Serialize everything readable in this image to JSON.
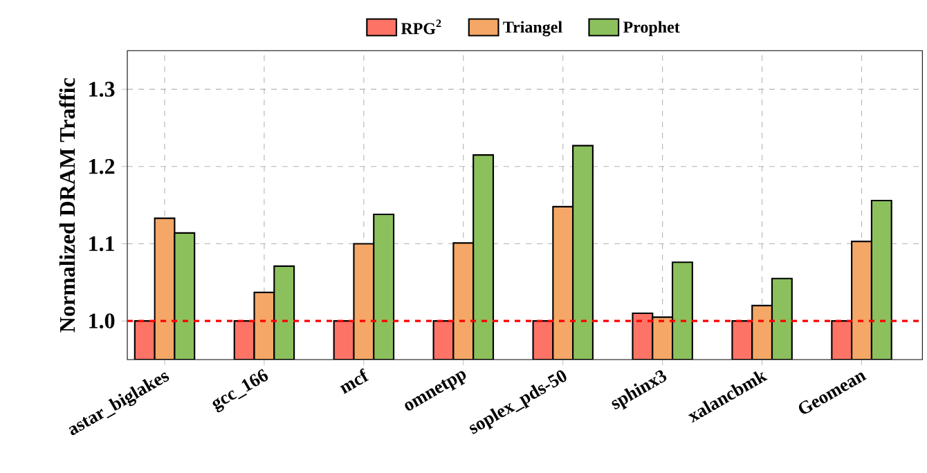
{
  "chart_data": {
    "type": "bar",
    "ylabel": "Normalized DRAM Traffic",
    "categories": [
      "astar_biglakes",
      "gcc_166",
      "mcf",
      "omnetpp",
      "soplex_pds-50",
      "sphinx3",
      "xalancbmk",
      "Geomean"
    ],
    "series": [
      {
        "name": "RPG$^{2}$",
        "color": "#fd7366",
        "values": [
          1.0,
          1.0,
          1.0,
          1.0,
          1.0,
          1.01,
          1.0,
          1.0
        ]
      },
      {
        "name": "Triangel",
        "color": "#f4a766",
        "values": [
          1.133,
          1.037,
          1.1,
          1.101,
          1.148,
          1.005,
          1.02,
          1.103
        ]
      },
      {
        "name": "Prophet",
        "color": "#8cc05d",
        "values": [
          1.114,
          1.071,
          1.138,
          1.215,
          1.227,
          1.076,
          1.055,
          1.156
        ]
      }
    ],
    "ylim": [
      0.95,
      1.35
    ],
    "yticks": [
      {
        "value": 1.0,
        "label": "1.0"
      },
      {
        "value": 1.1,
        "label": "1.1"
      },
      {
        "value": 1.2,
        "label": "1.2"
      },
      {
        "value": 1.3,
        "label": "1.3"
      }
    ],
    "ref_lines": [
      {
        "axis": "y",
        "value": 1.0,
        "color": "#ff0000",
        "line_style": "dashed"
      }
    ],
    "grid": true,
    "legend": "top"
  }
}
